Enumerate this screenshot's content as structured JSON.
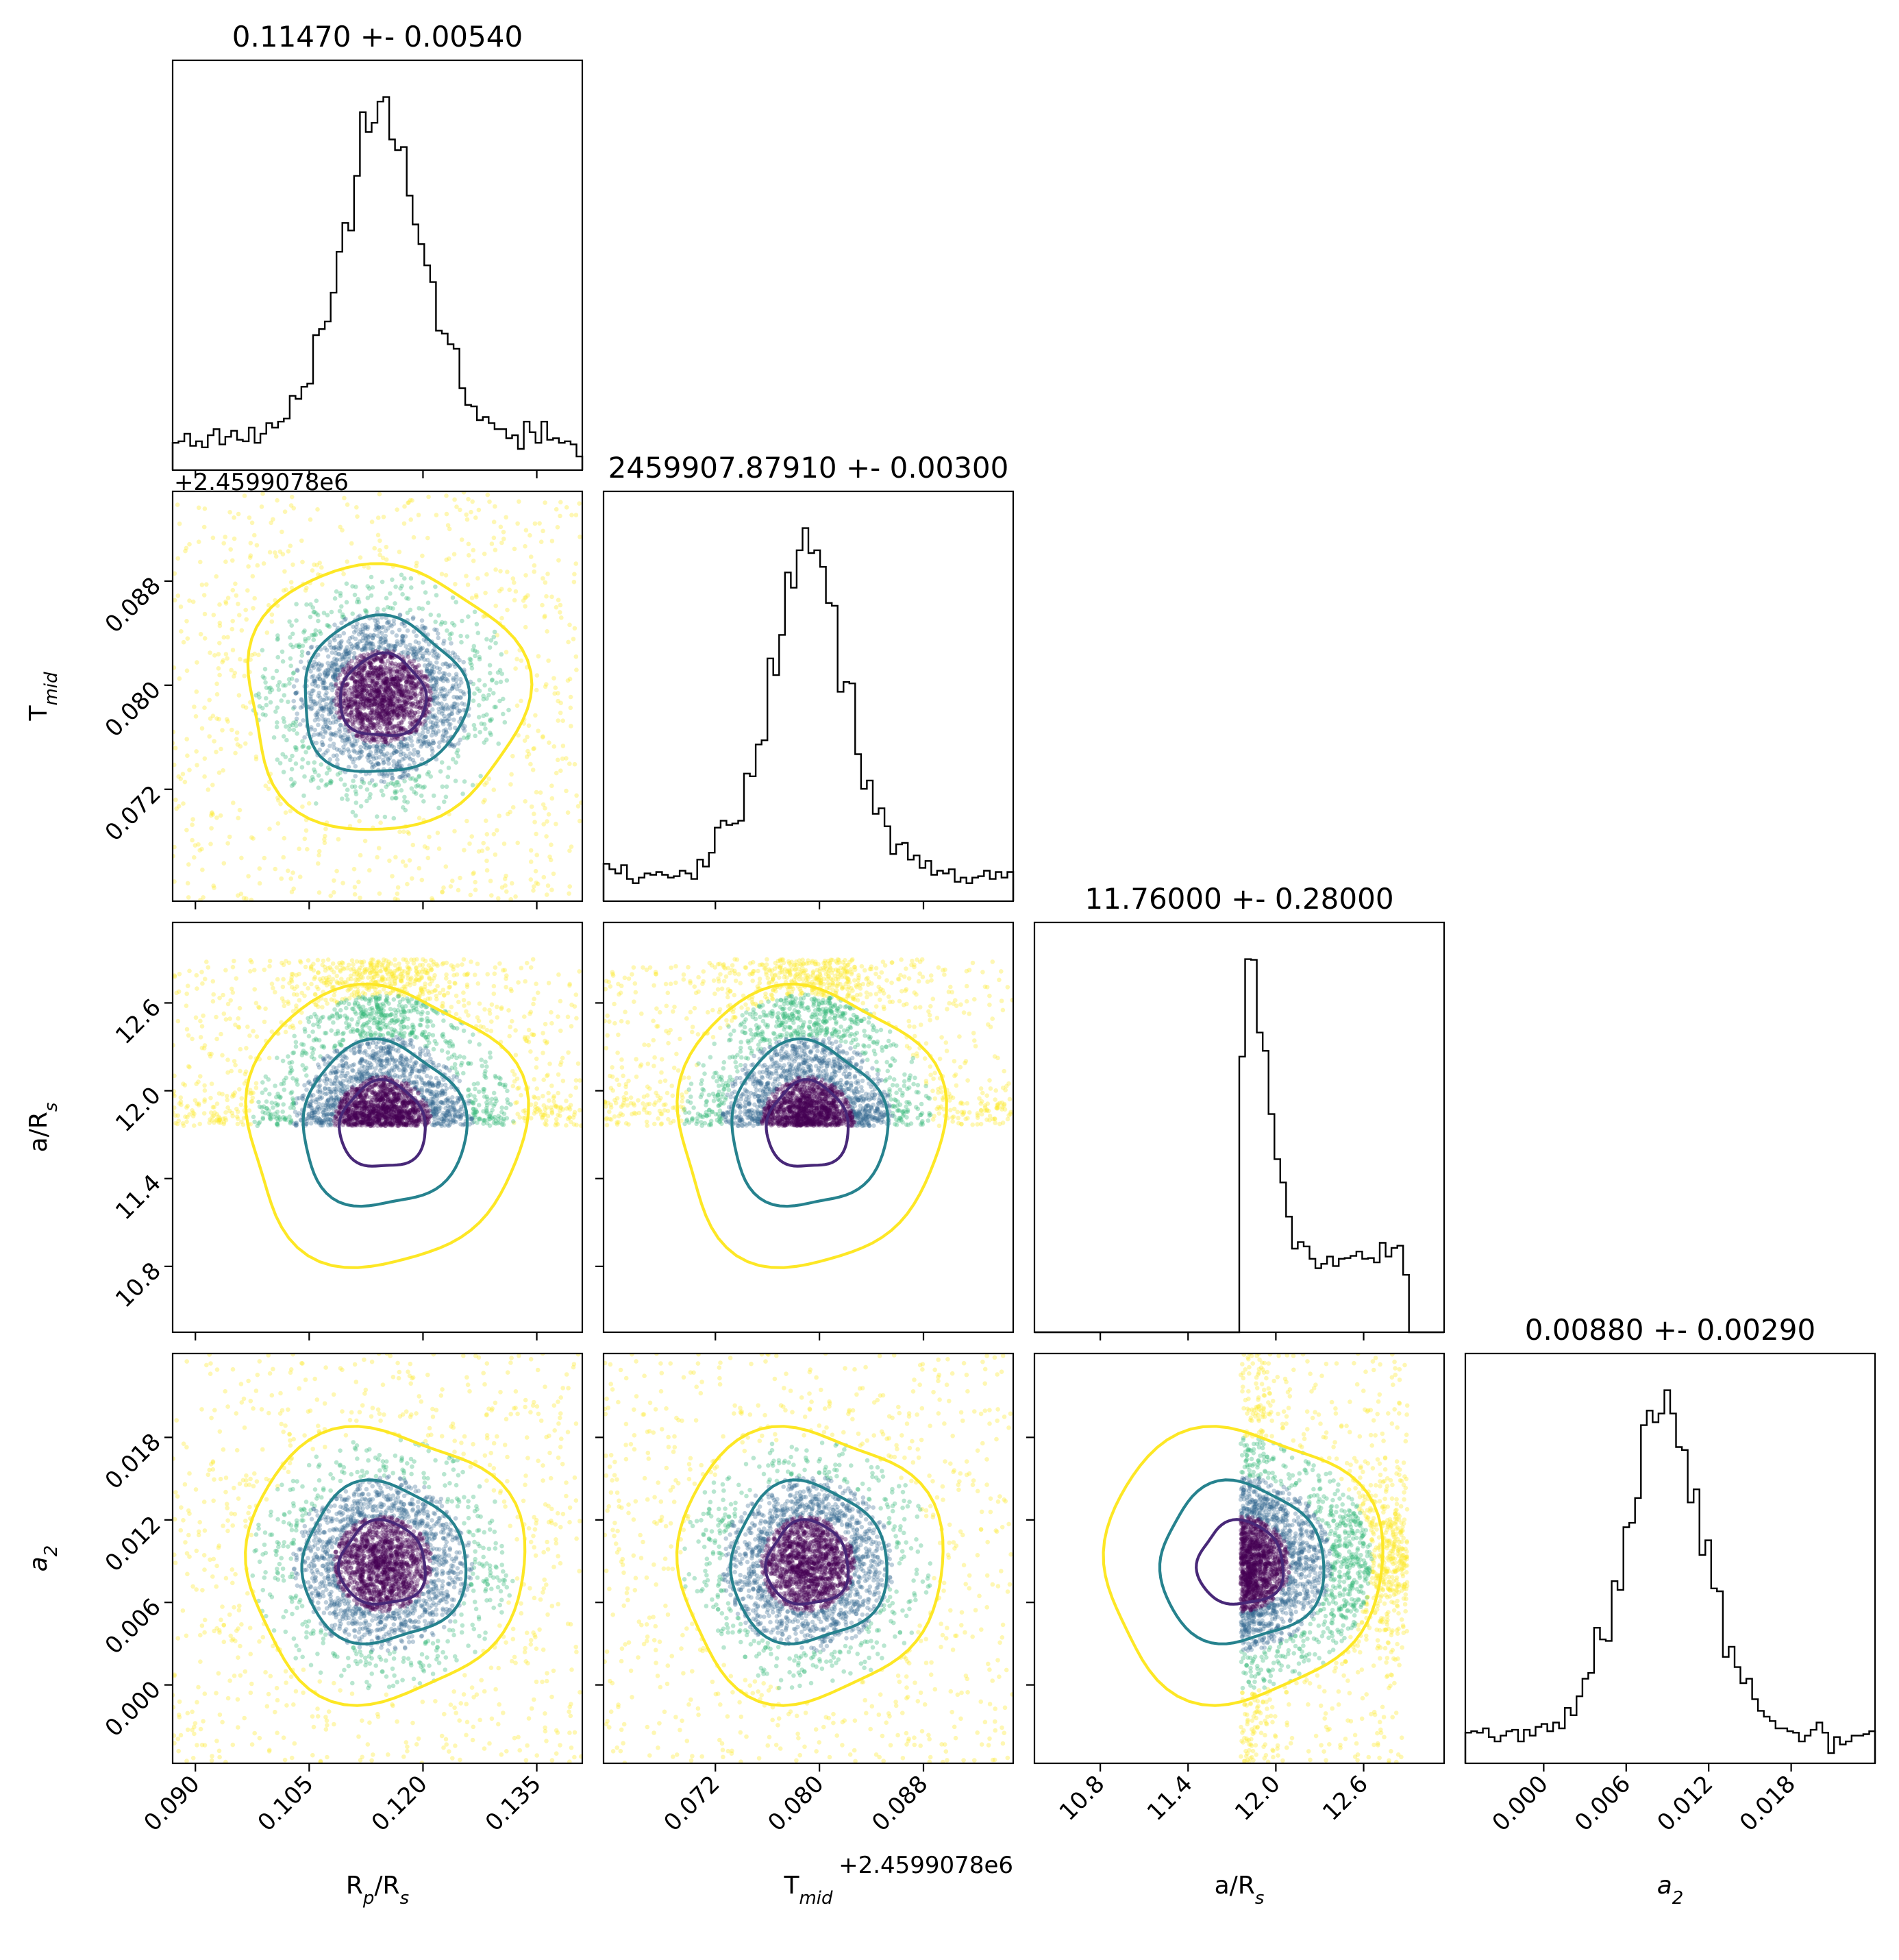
{
  "chart_data": {
    "type": "corner",
    "parameters": [
      {
        "name": "R_p/R_s",
        "label_base": "R",
        "label_sub": "p",
        "label_rest": "/R",
        "label_sub2": "s",
        "title": "0.11470 +- 0.00540",
        "range": [
          0.087,
          0.141
        ],
        "ticks": [
          0.09,
          0.105,
          0.12,
          0.135
        ],
        "tick_labels": [
          "0.090",
          "0.105",
          "0.120",
          "0.135"
        ],
        "offset_text": "",
        "median": 0.1147,
        "sigma": 0.0054
      },
      {
        "name": "T_mid",
        "label_base": "T",
        "label_sub": "mid",
        "label_rest": "",
        "label_sub2": "",
        "title": "2459907.87910 +- 0.00300",
        "range": [
          0.0634,
          0.0949
        ],
        "ticks": [
          0.072,
          0.08,
          0.088
        ],
        "tick_labels": [
          "0.072",
          "0.080",
          "0.088"
        ],
        "offset_text": "+2.4599078e6",
        "median": 0.0791,
        "sigma": 0.003
      },
      {
        "name": "a/R_s",
        "label_base": "a/R",
        "label_sub": "s",
        "label_rest": "",
        "label_sub2": "",
        "title": "11.76000 +- 0.28000",
        "range": [
          10.35,
          13.15
        ],
        "ticks": [
          10.8,
          11.4,
          12.0,
          12.6
        ],
        "tick_labels": [
          "10.8",
          "11.4",
          "12.0",
          "12.6"
        ],
        "offset_text": "",
        "median": 11.76,
        "sigma": 0.28,
        "hard_limits": [
          11.76,
          12.9
        ]
      },
      {
        "name": "a_2",
        "label_base": "a",
        "label_sub": "2",
        "label_rest": "",
        "label_sub2": "",
        "label_italic": true,
        "title": "0.00880 +- 0.00290",
        "range": [
          -0.0057,
          0.0241
        ],
        "ticks": [
          0.0,
          0.006,
          0.012,
          0.018
        ],
        "tick_labels": [
          "0.000",
          "0.006",
          "0.012",
          "0.018"
        ],
        "offset_text": "",
        "median": 0.0088,
        "sigma": 0.0029
      }
    ],
    "colors": {
      "histogram": "#000000",
      "contour_inner": "#482878",
      "contour_mid": "#26828e",
      "contour_outer": "#fde725",
      "points_core": "#440154",
      "points_mid": "#31688e",
      "points_green": "#35b779",
      "points_outer": "#fde725"
    },
    "grid": false
  }
}
